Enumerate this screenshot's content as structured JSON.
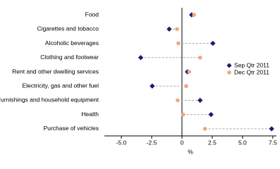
{
  "chart_data": {
    "type": "dot",
    "categories": [
      "Food",
      "Cigarettes and tobacco",
      "Alcoholic beverages",
      "Clothing and footwear",
      "Rent and other dwelling services",
      "Electricity, gas and other fuel",
      "Furnishings and household equipment",
      "Health",
      "Purchase of vehicles"
    ],
    "series": [
      {
        "name": "Sep Qtr 2011",
        "color": "#1b1b70",
        "values": [
          0.8,
          -1.05,
          2.55,
          -3.4,
          0.45,
          -2.45,
          1.5,
          2.4,
          7.4
        ]
      },
      {
        "name": "Dec Qtr 2011",
        "color": "#f4a582",
        "values": [
          1.0,
          -0.4,
          -0.3,
          1.5,
          0.6,
          0.35,
          -0.35,
          0.1,
          1.9
        ]
      }
    ],
    "x_label": "%",
    "xlim": [
      -6.4,
      7.8
    ],
    "xticks": [
      {
        "value": -5,
        "label": "-5.0"
      },
      -2.5,
      0,
      2.5,
      {
        "value": 5,
        "label": "5.0"
      },
      7.5
    ],
    "legend": "right"
  }
}
